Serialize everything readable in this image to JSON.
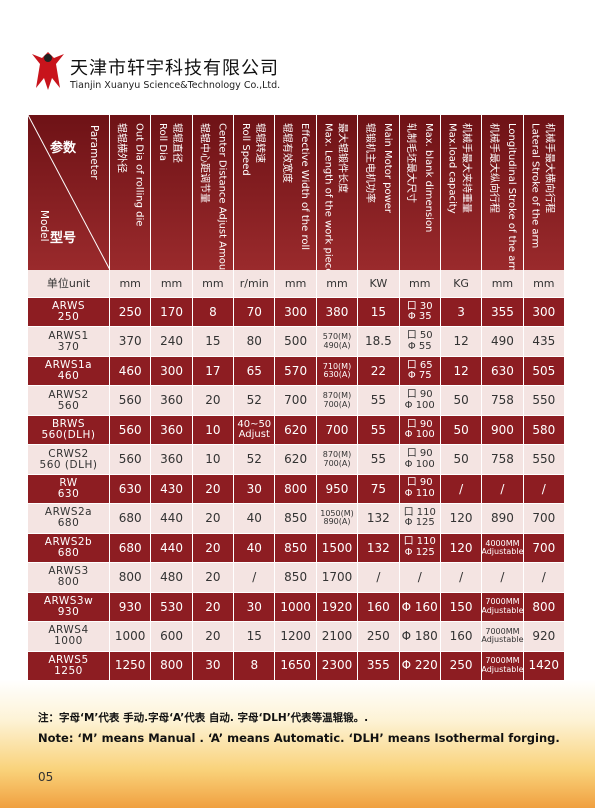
{
  "header": {
    "company_cn": "天津市轩宇科技有限公司",
    "company_en": "Tianjin Xuanyu Science&Technology Co.,Ltd."
  },
  "table": {
    "corner": {
      "param_cn": "参数",
      "param_en": "Parameter",
      "model_cn": "型号",
      "model_en": "Model"
    },
    "columns": [
      [
        "辊辊横外径",
        "Out Dia of rolling die"
      ],
      [
        "Roll Dia",
        "辊辊直径"
      ],
      [
        "辊辊中心距调节量",
        "Center Distance Adjust Amount"
      ],
      [
        "Roll Speed",
        "辊辊转速"
      ],
      [
        "辊辊有效宽度",
        "Effective Width of the roll"
      ],
      [
        "Max. Length of the work piece",
        "最大辊锻件长度"
      ],
      [
        "辊锻机主电机功率",
        "Main Motor power"
      ],
      [
        "轧制毛坯最大尺寸",
        "Max. blank dimension"
      ],
      [
        "Max.load capacity",
        "机械手最大夹持重量"
      ],
      [
        "机械手最大纵向行程",
        "Longitudinal Stroke of the arm"
      ],
      [
        "Lateral Stroke of the arm",
        "机械手最大横向行程"
      ]
    ],
    "units": [
      "单位unit",
      "mm",
      "mm",
      "mm",
      "r/min",
      "mm",
      "mm",
      "KW",
      "mm",
      "KG",
      "mm",
      "mm"
    ],
    "rows": [
      {
        "model": [
          "ARWS",
          "250"
        ],
        "cells": [
          [
            "250"
          ],
          [
            "170"
          ],
          [
            "8"
          ],
          [
            "70"
          ],
          [
            "300"
          ],
          [
            "380"
          ],
          [
            "15"
          ],
          [
            "口 30",
            "Φ 35"
          ],
          [
            "3"
          ],
          [
            "355"
          ],
          [
            "300"
          ]
        ]
      },
      {
        "model": [
          "ARWS1",
          "370"
        ],
        "cells": [
          [
            "370"
          ],
          [
            "240"
          ],
          [
            "15"
          ],
          [
            "80"
          ],
          [
            "500"
          ],
          [
            "570(M)",
            "490(A)"
          ],
          [
            "18.5"
          ],
          [
            "口 50",
            "Φ 55"
          ],
          [
            "12"
          ],
          [
            "490"
          ],
          [
            "435"
          ]
        ]
      },
      {
        "model": [
          "ARWS1a",
          "460"
        ],
        "cells": [
          [
            "460"
          ],
          [
            "300"
          ],
          [
            "17"
          ],
          [
            "65"
          ],
          [
            "570"
          ],
          [
            "710(M)",
            "630(A)"
          ],
          [
            "22"
          ],
          [
            "口 65",
            "Φ 75"
          ],
          [
            "12"
          ],
          [
            "630"
          ],
          [
            "505"
          ]
        ]
      },
      {
        "model": [
          "ARWS2",
          "560"
        ],
        "cells": [
          [
            "560"
          ],
          [
            "360"
          ],
          [
            "20"
          ],
          [
            "52"
          ],
          [
            "700"
          ],
          [
            "870(M)",
            "700(A)"
          ],
          [
            "55"
          ],
          [
            "口 90",
            "Φ 100"
          ],
          [
            "50"
          ],
          [
            "758"
          ],
          [
            "550"
          ]
        ]
      },
      {
        "model": [
          "BRWS",
          "560(DLH)"
        ],
        "cells": [
          [
            "560"
          ],
          [
            "360"
          ],
          [
            "10"
          ],
          [
            "40~50",
            "Adjust"
          ],
          [
            "620"
          ],
          [
            "700"
          ],
          [
            "55"
          ],
          [
            "口 90",
            "Φ 100"
          ],
          [
            "50"
          ],
          [
            "900"
          ],
          [
            "580"
          ]
        ]
      },
      {
        "model": [
          "CRWS2",
          "560 (DLH)"
        ],
        "cells": [
          [
            "560"
          ],
          [
            "360"
          ],
          [
            "10"
          ],
          [
            "52"
          ],
          [
            "620"
          ],
          [
            "870(M)",
            "700(A)"
          ],
          [
            "55"
          ],
          [
            "口 90",
            "Φ 100"
          ],
          [
            "50"
          ],
          [
            "758"
          ],
          [
            "550"
          ]
        ]
      },
      {
        "model": [
          "RW",
          "630"
        ],
        "cells": [
          [
            "630"
          ],
          [
            "430"
          ],
          [
            "20"
          ],
          [
            "30"
          ],
          [
            "800"
          ],
          [
            "950"
          ],
          [
            "75"
          ],
          [
            "口 90",
            "Φ 110"
          ],
          [
            "/"
          ],
          [
            "/"
          ],
          [
            "/"
          ]
        ]
      },
      {
        "model": [
          "ARWS2a",
          "680"
        ],
        "cells": [
          [
            "680"
          ],
          [
            "440"
          ],
          [
            "20"
          ],
          [
            "40"
          ],
          [
            "850"
          ],
          [
            "1050(M)",
            "890(A)"
          ],
          [
            "132"
          ],
          [
            "口 110",
            "Φ 125"
          ],
          [
            "120"
          ],
          [
            "890"
          ],
          [
            "700"
          ]
        ]
      },
      {
        "model": [
          "ARWS2b",
          "680"
        ],
        "cells": [
          [
            "680"
          ],
          [
            "440"
          ],
          [
            "20"
          ],
          [
            "40"
          ],
          [
            "850"
          ],
          [
            "1500"
          ],
          [
            "132"
          ],
          [
            "口 110",
            "Φ 125"
          ],
          [
            "120"
          ],
          [
            "4000MM",
            "Adjustable"
          ],
          [
            "700"
          ]
        ]
      },
      {
        "model": [
          "ARWS3",
          "800"
        ],
        "cells": [
          [
            "800"
          ],
          [
            "480"
          ],
          [
            "20"
          ],
          [
            "/"
          ],
          [
            "850"
          ],
          [
            "1700"
          ],
          [
            "/"
          ],
          [
            "/"
          ],
          [
            "/"
          ],
          [
            "/"
          ],
          [
            "/"
          ]
        ]
      },
      {
        "model": [
          "ARWS3w",
          "930"
        ],
        "cells": [
          [
            "930"
          ],
          [
            "530"
          ],
          [
            "20"
          ],
          [
            "30"
          ],
          [
            "1000"
          ],
          [
            "1920"
          ],
          [
            "160"
          ],
          [
            "Φ 160"
          ],
          [
            "150"
          ],
          [
            "7000MM",
            "Adjustable"
          ],
          [
            "800"
          ]
        ]
      },
      {
        "model": [
          "ARWS4",
          "1000"
        ],
        "cells": [
          [
            "1000"
          ],
          [
            "600"
          ],
          [
            "20"
          ],
          [
            "15"
          ],
          [
            "1200"
          ],
          [
            "2100"
          ],
          [
            "250"
          ],
          [
            "Φ 180"
          ],
          [
            "160"
          ],
          [
            "7000MM",
            "Adjustable"
          ],
          [
            "920"
          ]
        ]
      },
      {
        "model": [
          "ARWS5",
          "1250"
        ],
        "cells": [
          [
            "1250"
          ],
          [
            "800"
          ],
          [
            "30"
          ],
          [
            "8"
          ],
          [
            "1650"
          ],
          [
            "2300"
          ],
          [
            "355"
          ],
          [
            "Φ 220"
          ],
          [
            "250"
          ],
          [
            "7000MM",
            "Adjustable"
          ],
          [
            "1420"
          ]
        ]
      }
    ]
  },
  "notes": {
    "cn": "注：字母‘M’代表 手动.字母‘A’代表 自动. 字母‘DLH’代表等温辊锻。.",
    "en": "Note: ‘M’ means Manual . ‘A’ means Automatic. ‘DLH’ means Isothermal forging."
  },
  "page_number": "05"
}
